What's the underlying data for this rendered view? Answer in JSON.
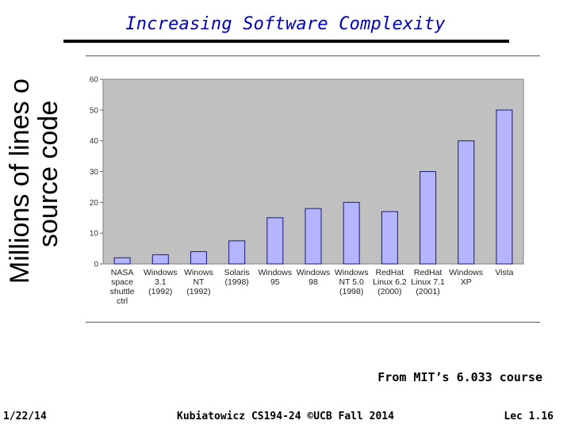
{
  "slide": {
    "title": "Increasing Software Complexity",
    "source_note": "From MIT’s 6.033 course",
    "footer": {
      "date": "1/22/14",
      "course": "Kubiatowicz CS194-24 ©UCB Fall 2014",
      "lecture": "Lec 1.16"
    }
  },
  "colors": {
    "title": "#0000c0",
    "bar_fill": "#b4b4ff",
    "bar_stroke": "#1a1a7a",
    "plot_bg": "#c0c0c0",
    "plot_border": "#808080"
  },
  "chart_data": {
    "type": "bar",
    "ylabel": [
      "Millions of lines of",
      "source code"
    ],
    "categories": [
      [
        "NASA",
        "space",
        "shuttle",
        "ctrl"
      ],
      [
        "Windows",
        "3.1",
        "(1992)"
      ],
      [
        "Winows",
        "NT",
        "(1992)"
      ],
      [
        "Solaris",
        "(1998)"
      ],
      [
        "Windows",
        "95"
      ],
      [
        "Windows",
        "98"
      ],
      [
        "Windows",
        "NT 5.0",
        "(1998)"
      ],
      [
        "RedHat",
        "Linux 6.2",
        "(2000)"
      ],
      [
        "RedHat",
        "Linux 7.1",
        "(2001)"
      ],
      [
        "Windows",
        "XP"
      ],
      [
        "Vista"
      ]
    ],
    "values": [
      2,
      3,
      4,
      7.5,
      15,
      18,
      20,
      17,
      30,
      40,
      50
    ],
    "ylim": [
      0,
      60
    ],
    "yticks": [
      0,
      10,
      20,
      30,
      40,
      50,
      60
    ],
    "grid": false,
    "legend": "none"
  }
}
